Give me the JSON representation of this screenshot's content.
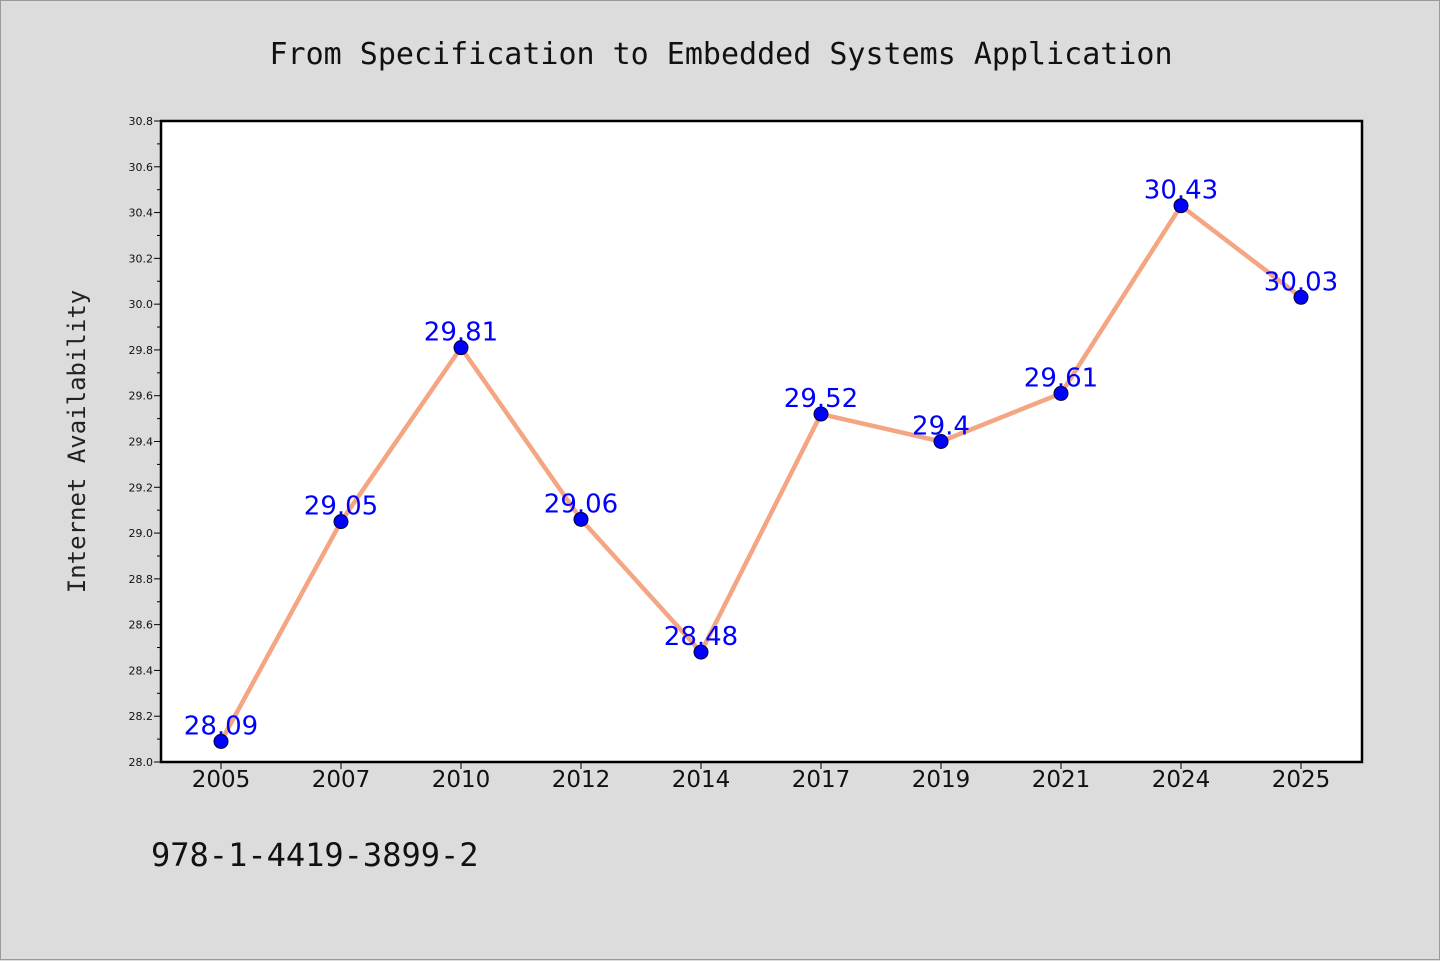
{
  "chart_data": {
    "type": "line",
    "title": "From Specification to Embedded Systems Application",
    "xlabel": "",
    "ylabel": "Internet Availability",
    "categories": [
      "2005",
      "2007",
      "2010",
      "2012",
      "2014",
      "2017",
      "2019",
      "2021",
      "2024",
      "2025"
    ],
    "series": [
      {
        "values": [
          28.09,
          29.05,
          29.81,
          29.06,
          28.48,
          29.52,
          29.4,
          29.61,
          30.43,
          30.03
        ],
        "labels": [
          "28.09",
          "29.05",
          "29.81",
          "29.06",
          "28.48",
          "29.52",
          "29.4",
          "29.61",
          "30.43",
          "30.03"
        ],
        "line_color": "#f4a582",
        "marker_color": "#0000ff"
      }
    ],
    "ylim": [
      28.0,
      30.8
    ],
    "yticks": [
      "28.0",
      "28.2",
      "28.4",
      "28.6",
      "28.8",
      "29.0",
      "29.2",
      "29.4",
      "29.6",
      "29.8",
      "30.0",
      "30.2",
      "30.4",
      "30.6",
      "30.8"
    ],
    "grid": false,
    "legend": "none"
  },
  "footer": {
    "isbn": "978-1-4419-3899-2"
  },
  "colors": {
    "background": "#dcdcdc",
    "plot_background": "#ffffff",
    "axis": "#000000",
    "label": "#0000ff"
  }
}
